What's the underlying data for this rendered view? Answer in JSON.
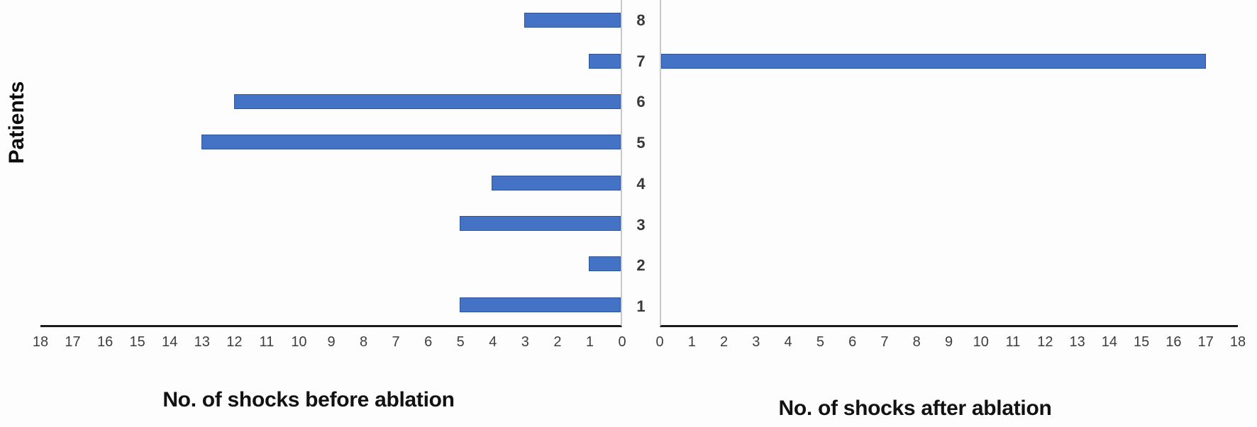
{
  "figure": {
    "y_axis_label": "Patients",
    "left_axis_title": "No. of shocks before ablation",
    "right_axis_title": "No. of shocks after ablation"
  },
  "chart_data": {
    "type": "bar",
    "subtype": "butterfly",
    "orientation": "horizontal",
    "title": "",
    "ylabel": "Patients",
    "categories_top_to_bottom": [
      "8",
      "7",
      "6",
      "5",
      "4",
      "3",
      "2",
      "1"
    ],
    "series": [
      {
        "name": "No. of shocks before ablation",
        "side": "left",
        "axis_direction": "right-to-left",
        "values": [
          3,
          1,
          12,
          13,
          4,
          5,
          1,
          5
        ]
      },
      {
        "name": "No. of shocks after ablation",
        "side": "right",
        "axis_direction": "left-to-right",
        "values": [
          0,
          17,
          0,
          0,
          0,
          0,
          0,
          0
        ]
      }
    ],
    "x_ticks": [
      0,
      1,
      2,
      3,
      4,
      5,
      6,
      7,
      8,
      9,
      10,
      11,
      12,
      13,
      14,
      15,
      16,
      17,
      18
    ],
    "xlim": [
      0,
      18
    ],
    "grid": false,
    "legend": false,
    "bar_color": "#4472C4",
    "bar_border_color": "#2E5597",
    "axis_line_color": "#1C1C1C",
    "tick_label_color": "#3D3D3D"
  }
}
